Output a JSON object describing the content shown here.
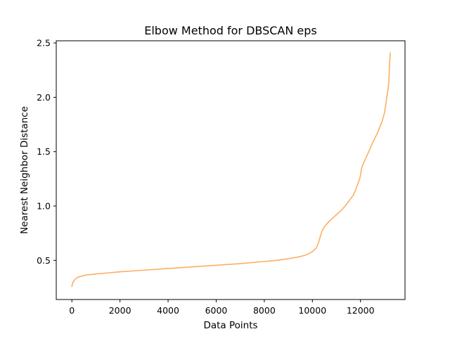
{
  "chart_data": {
    "type": "line",
    "title": "Elbow Method for DBSCAN eps",
    "xlabel": "Data Points",
    "ylabel": "Nearest Neighbor Distance",
    "xlim": [
      -650,
      13850
    ],
    "ylim": [
      0.14,
      2.52
    ],
    "xticks": [
      0,
      2000,
      4000,
      6000,
      8000,
      10000,
      12000
    ],
    "xtick_labels": [
      "0",
      "2000",
      "4000",
      "6000",
      "8000",
      "10000",
      "12000"
    ],
    "yticks": [
      0.5,
      1.0,
      1.5,
      2.0,
      2.5
    ],
    "ytick_labels": [
      "0.5",
      "1.0",
      "1.5",
      "2.0",
      "2.5"
    ],
    "grid": false,
    "legend": "none",
    "series": [
      {
        "color": "#fdae61",
        "x": [
          0,
          30,
          80,
          150,
          250,
          400,
          600,
          1000,
          1500,
          2000,
          3000,
          4000,
          5000,
          6000,
          7000,
          8000,
          8500,
          9000,
          9500,
          9800,
          10000,
          10150,
          10250,
          10300,
          10400,
          10500,
          10700,
          11000,
          11200,
          11400,
          11500,
          11600,
          11700,
          11800,
          11900,
          11980,
          12050,
          12100,
          12300,
          12500,
          12700,
          12900,
          13000,
          13050,
          13100,
          13150,
          13180,
          13200,
          13220,
          13240
        ],
        "y": [
          0.26,
          0.29,
          0.31,
          0.33,
          0.345,
          0.355,
          0.365,
          0.375,
          0.385,
          0.395,
          0.41,
          0.425,
          0.44,
          0.455,
          0.47,
          0.49,
          0.5,
          0.515,
          0.535,
          0.555,
          0.58,
          0.61,
          0.66,
          0.7,
          0.77,
          0.81,
          0.86,
          0.92,
          0.96,
          1.01,
          1.04,
          1.07,
          1.1,
          1.15,
          1.21,
          1.26,
          1.35,
          1.38,
          1.48,
          1.58,
          1.67,
          1.78,
          1.86,
          1.93,
          2.01,
          2.08,
          2.15,
          2.26,
          2.35,
          2.41
        ]
      }
    ]
  }
}
